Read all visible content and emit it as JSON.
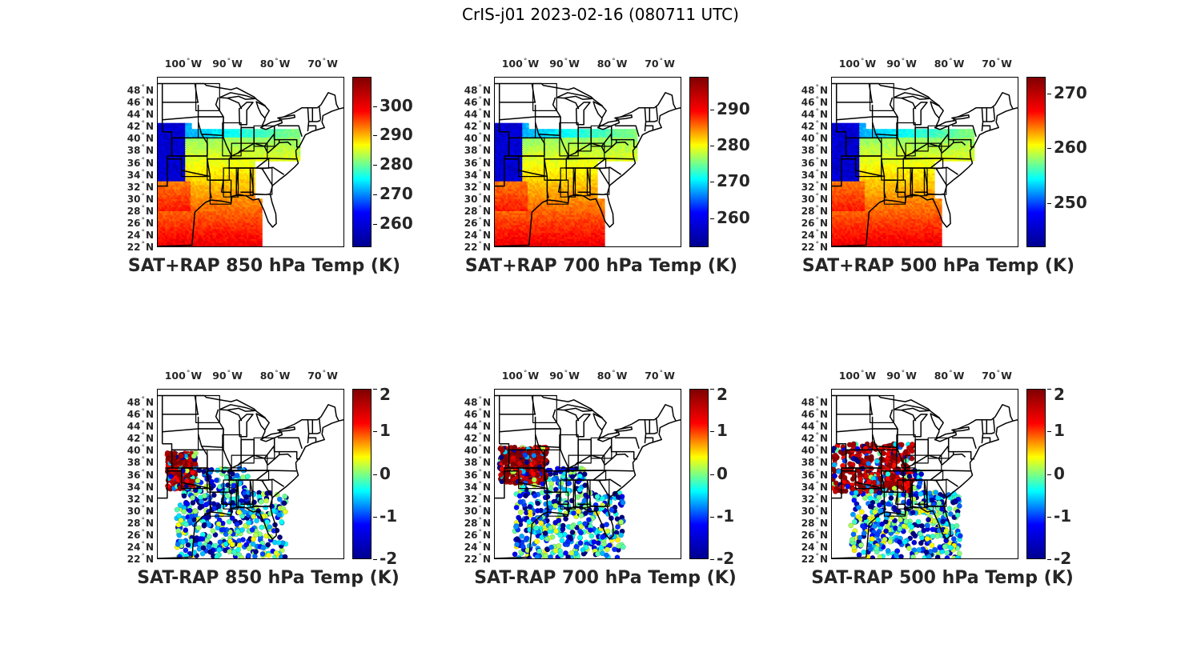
{
  "figure": {
    "title": "CrIS-j01 2023-02-16 (080711 UTC)"
  },
  "map": {
    "lon_labels": [
      "100",
      "90",
      "80",
      "70"
    ],
    "lon_suffix": "W",
    "lat_labels": [
      "48",
      "46",
      "44",
      "42",
      "40",
      "38",
      "36",
      "34",
      "32",
      "30",
      "28",
      "26",
      "24",
      "22"
    ],
    "lat_suffix": "N",
    "degree_symbol": "°",
    "lon_extent": [
      -105,
      -66
    ],
    "lat_extent": [
      22,
      50
    ]
  },
  "colormap": {
    "name": "jet",
    "stops": [
      "#00008f",
      "#0000ff",
      "#00ffff",
      "#ffff00",
      "#ff0000",
      "#800000"
    ]
  },
  "chart_data": [
    {
      "type": "map-scatter",
      "title": "SAT+RAP 850 hPa Temp (K)",
      "clim": [
        252,
        310
      ],
      "ticks": [
        260,
        270,
        280,
        290,
        300
      ]
    },
    {
      "type": "map-scatter",
      "title": "SAT+RAP 700 hPa Temp (K)",
      "clim": [
        252,
        299
      ],
      "ticks": [
        260,
        270,
        280,
        290
      ]
    },
    {
      "type": "map-scatter",
      "title": "SAT+RAP 500 hPa Temp (K)",
      "clim": [
        242,
        273
      ],
      "ticks": [
        250,
        260,
        270
      ]
    },
    {
      "type": "map-scatter",
      "title": "SAT-RAP 850 hPa Temp (K)",
      "clim": [
        -2,
        2
      ],
      "ticks": [
        -2,
        -1,
        0,
        1,
        2
      ]
    },
    {
      "type": "map-scatter",
      "title": "SAT-RAP 700 hPa Temp (K)",
      "clim": [
        -2,
        2
      ],
      "ticks": [
        -2,
        -1,
        0,
        1,
        2
      ]
    },
    {
      "type": "map-scatter",
      "title": "SAT-RAP 500 hPa Temp (K)",
      "clim": [
        -2,
        2
      ],
      "ticks": [
        -2,
        -1,
        0,
        1,
        2
      ]
    }
  ]
}
